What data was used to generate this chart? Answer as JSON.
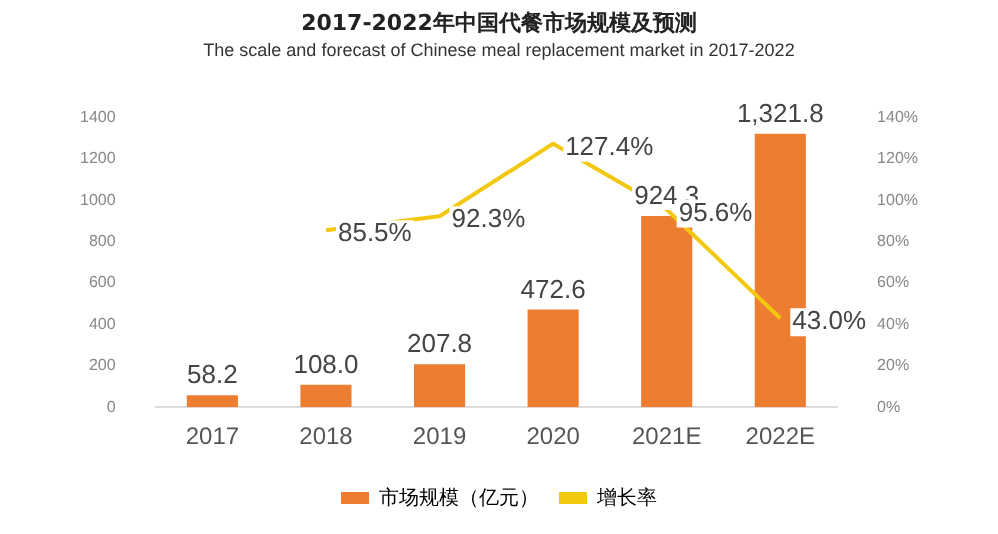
{
  "chart_data": {
    "type": "bar",
    "title": "2017-2022年中国代餐市场规模及预测",
    "subtitle": "The scale and forecast of Chinese meal replacement market in 2017-2022",
    "categories": [
      "2017",
      "2018",
      "2019",
      "2020",
      "2021E",
      "2022E"
    ],
    "series": [
      {
        "name": "市场规模（亿元）",
        "color": "#ed7d31",
        "values": [
          58.2,
          108.0,
          207.8,
          472.6,
          924.3,
          1321.8
        ],
        "value_labels": [
          "58.2",
          "108.0",
          "207.8",
          "472.6",
          "924.3",
          "1,321.8"
        ]
      },
      {
        "name": "增长率",
        "type": "line",
        "axis": "y2",
        "color": "#f2c811",
        "values": [
          null,
          85.5,
          92.3,
          127.4,
          95.6,
          43.0
        ],
        "value_labels": [
          null,
          "85.5%",
          "92.3%",
          "127.4%",
          "95.6%",
          "43.0%"
        ]
      }
    ],
    "ylim": [
      0,
      1400
    ],
    "yticks": [
      0,
      200,
      400,
      600,
      800,
      1000,
      1200,
      1400
    ],
    "y2lim": [
      0,
      140
    ],
    "y2ticks": [
      {
        "value": 0,
        "label": "0%"
      },
      {
        "value": 20,
        "label": "20%"
      },
      {
        "value": 40,
        "label": "40%"
      },
      {
        "value": 60,
        "label": "60%"
      },
      {
        "value": 80,
        "label": "80%"
      },
      {
        "value": 100,
        "label": "100%"
      },
      {
        "value": 120,
        "label": "120%"
      },
      {
        "value": 140,
        "label": "140%"
      }
    ],
    "grid": false,
    "legend": "bottom",
    "marker": "none",
    "line_style": "solid"
  }
}
